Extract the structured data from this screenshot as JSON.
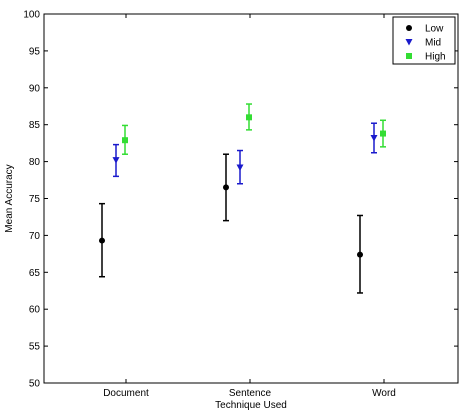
{
  "chart_data": {
    "type": "scatter",
    "title": "",
    "xlabel": "Technique Used",
    "ylabel": "Mean Accuracy",
    "categories": [
      "Document",
      "Sentence",
      "Word"
    ],
    "ylim": [
      50,
      100
    ],
    "yticks": [
      50,
      55,
      60,
      65,
      70,
      75,
      80,
      85,
      90,
      95,
      100
    ],
    "grid": false,
    "legend_position": "top-right",
    "series": [
      {
        "name": "Low",
        "color": "#000000",
        "marker": "circle",
        "values": [
          69.3,
          76.5,
          67.4
        ],
        "err_low": [
          64.4,
          72.0,
          62.2
        ],
        "err_high": [
          74.3,
          81.0,
          72.7
        ]
      },
      {
        "name": "Mid",
        "color": "#1a1acc",
        "marker": "triangle-down",
        "values": [
          80.2,
          79.2,
          83.2
        ],
        "err_low": [
          78.0,
          77.0,
          81.2
        ],
        "err_high": [
          82.3,
          81.5,
          85.2
        ]
      },
      {
        "name": "High",
        "color": "#33dd33",
        "marker": "square",
        "values": [
          82.9,
          86.0,
          83.8
        ],
        "err_low": [
          81.0,
          84.3,
          82.0
        ],
        "err_high": [
          84.9,
          87.8,
          85.6
        ]
      }
    ]
  }
}
